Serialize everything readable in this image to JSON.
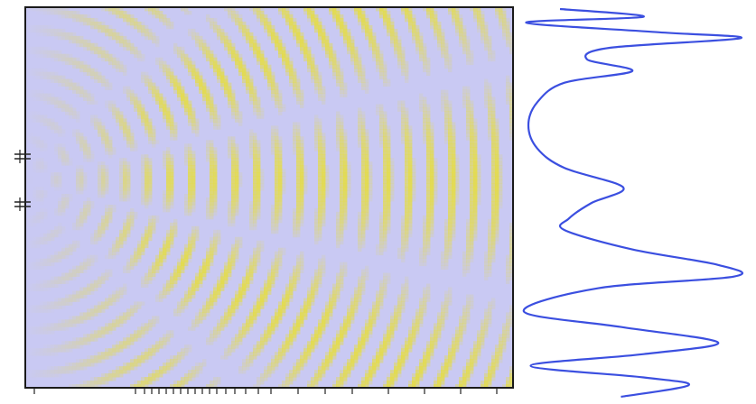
{
  "figure": {
    "description_visible_text": "",
    "colors": {
      "background": "#ffffff",
      "field_low": "#c9c9f3",
      "field_high": "#e4dc4a",
      "frame": "#1a1a1a",
      "intensity_curve": "#3b4fe0"
    },
    "sources": {
      "count": 2,
      "marker_icon": "double-slit-marker"
    },
    "intensity_profile": {
      "samples": [
        [
          0.0,
          0.18
        ],
        [
          0.02,
          0.55
        ],
        [
          0.035,
          0.03
        ],
        [
          0.06,
          0.62
        ],
        [
          0.075,
          0.98
        ],
        [
          0.1,
          0.4
        ],
        [
          0.13,
          0.3
        ],
        [
          0.16,
          0.5
        ],
        [
          0.19,
          0.2
        ],
        [
          0.24,
          0.08
        ],
        [
          0.3,
          0.04
        ],
        [
          0.36,
          0.08
        ],
        [
          0.41,
          0.2
        ],
        [
          0.46,
          0.46
        ],
        [
          0.5,
          0.32
        ],
        [
          0.54,
          0.22
        ],
        [
          0.57,
          0.2
        ],
        [
          0.62,
          0.5
        ],
        [
          0.66,
          0.88
        ],
        [
          0.69,
          0.95
        ],
        [
          0.72,
          0.35
        ],
        [
          0.78,
          0.02
        ],
        [
          0.82,
          0.45
        ],
        [
          0.86,
          0.88
        ],
        [
          0.89,
          0.55
        ],
        [
          0.92,
          0.05
        ],
        [
          0.95,
          0.55
        ],
        [
          0.97,
          0.75
        ],
        [
          1.0,
          0.45
        ]
      ]
    }
  }
}
